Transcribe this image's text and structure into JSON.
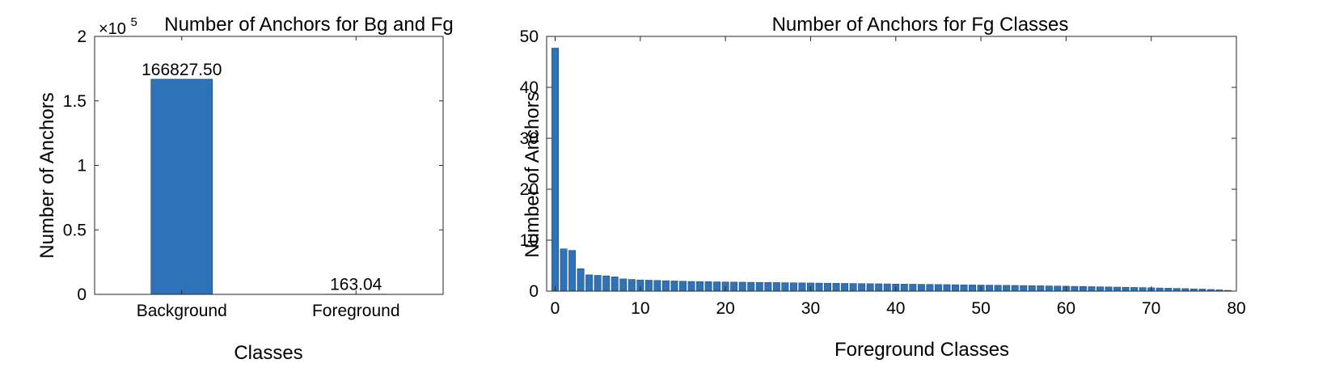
{
  "colors": {
    "bar": "#2e72b8",
    "bar_edge": "#1a3f66",
    "axis": "#262626"
  },
  "chart_data": [
    {
      "type": "bar",
      "title": "Number of Anchors for Bg and Fg",
      "xlabel": "Classes",
      "ylabel": "Number of Anchors",
      "exponent_label": "×10",
      "exponent_power": "5",
      "categories": [
        "Background",
        "Foreground"
      ],
      "values": [
        166827.5,
        163.04
      ],
      "value_labels": [
        "166827.50",
        "163.04"
      ],
      "ylim": [
        0,
        200000
      ],
      "yticks": [
        0,
        50000,
        100000,
        150000,
        200000
      ],
      "ytick_labels": [
        "0",
        "0.5",
        "1",
        "1.5",
        "2"
      ],
      "grid": false
    },
    {
      "type": "bar",
      "title": "Number of Anchors for Fg Classes",
      "xlabel": "Foreground Classes",
      "ylabel": "Number of Anchors",
      "x": [
        0,
        1,
        2,
        3,
        4,
        5,
        6,
        7,
        8,
        9,
        10,
        11,
        12,
        13,
        14,
        15,
        16,
        17,
        18,
        19,
        20,
        21,
        22,
        23,
        24,
        25,
        26,
        27,
        28,
        29,
        30,
        31,
        32,
        33,
        34,
        35,
        36,
        37,
        38,
        39,
        40,
        41,
        42,
        43,
        44,
        45,
        46,
        47,
        48,
        49,
        50,
        51,
        52,
        53,
        54,
        55,
        56,
        57,
        58,
        59,
        60,
        61,
        62,
        63,
        64,
        65,
        66,
        67,
        68,
        69,
        70,
        71,
        72,
        73,
        74,
        75,
        76,
        77,
        78,
        79
      ],
      "values": [
        47.7,
        8.3,
        8.0,
        4.4,
        3.2,
        3.1,
        3.0,
        2.8,
        2.4,
        2.3,
        2.2,
        2.15,
        2.1,
        2.05,
        2.0,
        1.95,
        1.9,
        1.88,
        1.85,
        1.82,
        1.8,
        1.78,
        1.76,
        1.74,
        1.72,
        1.7,
        1.68,
        1.66,
        1.64,
        1.62,
        1.6,
        1.58,
        1.56,
        1.54,
        1.52,
        1.5,
        1.48,
        1.46,
        1.44,
        1.42,
        1.4,
        1.38,
        1.36,
        1.34,
        1.32,
        1.3,
        1.28,
        1.26,
        1.24,
        1.22,
        1.2,
        1.18,
        1.16,
        1.14,
        1.12,
        1.1,
        1.08,
        1.05,
        1.02,
        1.0,
        0.97,
        0.94,
        0.91,
        0.88,
        0.85,
        0.82,
        0.79,
        0.76,
        0.73,
        0.7,
        0.66,
        0.62,
        0.58,
        0.54,
        0.5,
        0.45,
        0.4,
        0.33,
        0.25,
        0.15
      ],
      "xlim": [
        -1,
        80
      ],
      "ylim": [
        0,
        50
      ],
      "xticks": [
        0,
        10,
        20,
        30,
        40,
        50,
        60,
        70,
        80
      ],
      "xtick_labels": [
        "0",
        "10",
        "20",
        "30",
        "40",
        "50",
        "60",
        "70",
        "80"
      ],
      "yticks": [
        0,
        10,
        20,
        30,
        40,
        50
      ],
      "ytick_labels": [
        "0",
        "10",
        "20",
        "30",
        "40",
        "50"
      ],
      "grid": false
    }
  ]
}
